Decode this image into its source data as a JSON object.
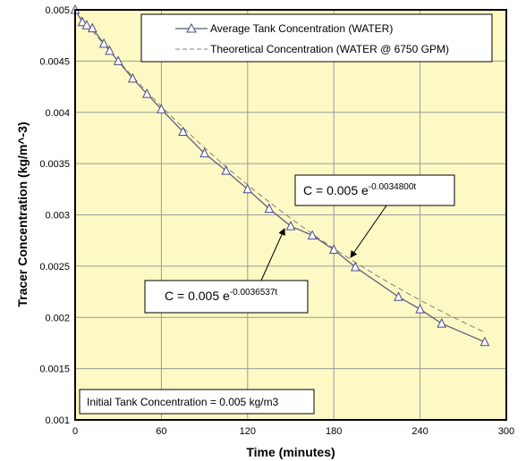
{
  "colors": {
    "plot_background": "#FDF9C4",
    "grid": "#9a9a9a",
    "series_average": "#55557f",
    "series_theoretical": "#808080",
    "marker": "#4a4a8a"
  },
  "chart_data": {
    "type": "line",
    "xlabel": "Time (minutes)",
    "ylabel": "Tracer Concentration (kg/m^-3)",
    "xlim": [
      0,
      300
    ],
    "ylim": [
      0.001,
      0.005
    ],
    "xticks": [
      0,
      60,
      120,
      180,
      240,
      300
    ],
    "yticks": [
      0.001,
      0.0015,
      0.002,
      0.0025,
      0.003,
      0.0035,
      0.004,
      0.0045,
      0.005
    ],
    "xtick_labels": [
      "0",
      "60",
      "120",
      "180",
      "240",
      "300"
    ],
    "ytick_labels": [
      "0.001",
      "0.0015",
      "0.002",
      "0.0025",
      "0.003",
      "0.0035",
      "0.004",
      "0.0045",
      "0.005"
    ],
    "grid": true,
    "legend_position": "top-right",
    "series": [
      {
        "name": "Average Tank Concentration (WATER)",
        "style": "solid line with open triangle markers",
        "x": [
          0,
          5,
          8,
          12,
          20,
          24,
          30,
          40,
          50,
          60,
          75,
          90,
          105,
          120,
          135,
          150,
          165,
          180,
          195,
          225,
          240,
          255,
          285
        ],
        "y": [
          0.005,
          0.00488,
          0.00485,
          0.00482,
          0.00467,
          0.0046,
          0.0045,
          0.00433,
          0.00418,
          0.00403,
          0.00381,
          0.0036,
          0.00343,
          0.00325,
          0.00306,
          0.00289,
          0.0028,
          0.00266,
          0.00249,
          0.0022,
          0.00208,
          0.00194,
          0.00176
        ]
      },
      {
        "name": "Theoretical Concentration (WATER @ 6750 GPM)",
        "style": "dashed line",
        "equation": {
          "a": 0.005,
          "k": 0.00348
        },
        "x_range": [
          0,
          285
        ]
      }
    ],
    "annotations": {
      "theoretical_equation": {
        "prefix": "C = 0.005 e",
        "exponent": "-0.0034800t"
      },
      "average_equation": {
        "prefix": "C = 0.005 e",
        "exponent": "-0.0036537t"
      },
      "initial_note": "Initial Tank Concentration = 0.005 kg/m3"
    }
  }
}
